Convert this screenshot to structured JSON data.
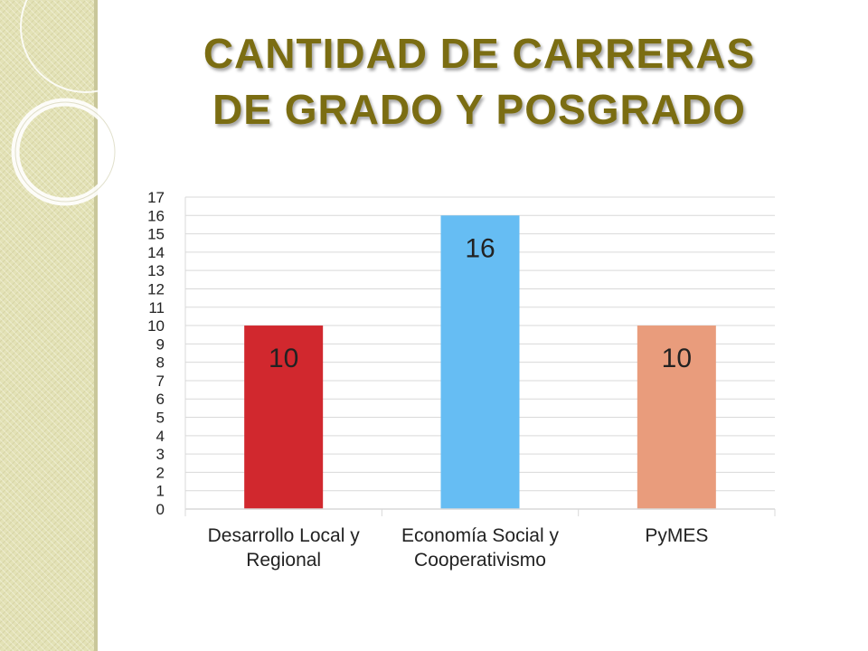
{
  "slide": {
    "title_line1": "CANTIDAD DE CARRERAS",
    "title_line2": "DE GRADO Y POSGRADO"
  },
  "colors": {
    "title": "#7b6d12",
    "strip": "#e3e2b6",
    "grid": "#d9d9d9"
  },
  "chart_data": {
    "type": "bar",
    "categories": [
      [
        "Desarrollo Local y",
        "Regional"
      ],
      [
        "Economía Social y",
        "Cooperativismo"
      ],
      [
        "PyMES"
      ]
    ],
    "values": [
      10,
      16,
      10
    ],
    "data_labels": [
      "10",
      "16",
      "10"
    ],
    "bar_colors": [
      "#d1282e",
      "#66bdf3",
      "#e99c7c"
    ],
    "ylim": [
      0,
      17
    ],
    "yticks": [
      0,
      1,
      2,
      3,
      4,
      5,
      6,
      7,
      8,
      9,
      10,
      11,
      12,
      13,
      14,
      15,
      16,
      17
    ],
    "grid": true,
    "legend": "none",
    "xlabel": "",
    "ylabel": ""
  }
}
